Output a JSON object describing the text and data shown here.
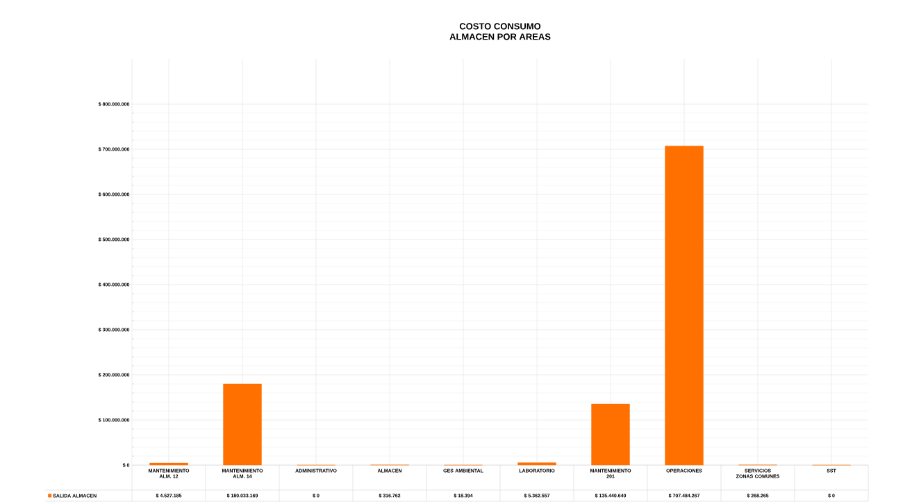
{
  "chart_data": {
    "type": "bar",
    "title": "COSTO CONSUMO ALMACEN POR AREAS",
    "categories": [
      "MANTENIMIENTO ALM. 12",
      "MANTENIMIENTO ALM. 14",
      "ADMINISTRATIVO",
      "ALMACEN",
      "GES AMBIENTAL",
      "LABORATORIO",
      "MANTENIMIENTO 201",
      "OPERACIONES",
      "SERVICIOS ZONAS COMUNES",
      "SST"
    ],
    "series": [
      {
        "name": "SALIDA ALMACEN",
        "color": "#ff7000",
        "values": [
          4527185,
          180033169,
          0,
          316762,
          18394,
          5362557,
          135440640,
          707484267,
          268265,
          0
        ],
        "value_labels": [
          "$ 4.527.185",
          "$ 180.033.169",
          "$ 0",
          "$ 316.762",
          "$ 18.394",
          "$ 5.362.557",
          "$ 135.440.640",
          "$ 707.484.267",
          "$ 268.265",
          "$ 0"
        ]
      }
    ],
    "ylim": [
      0,
      900000000
    ],
    "yticks": [
      {
        "value": 0,
        "label": "$ 0"
      },
      {
        "value": 100000000,
        "label": "$ 100.000.000"
      },
      {
        "value": 200000000,
        "label": "$ 200.000.000"
      },
      {
        "value": 300000000,
        "label": "$ 300.000.000"
      },
      {
        "value": 400000000,
        "label": "$ 400.000.000"
      },
      {
        "value": 500000000,
        "label": "$ 500.000.000"
      },
      {
        "value": 600000000,
        "label": "$ 600.000.000"
      },
      {
        "value": 700000000,
        "label": "$ 700.000.000"
      },
      {
        "value": 800000000,
        "label": "$ 800.000.000"
      }
    ],
    "grid": true,
    "legend": "bottom"
  }
}
